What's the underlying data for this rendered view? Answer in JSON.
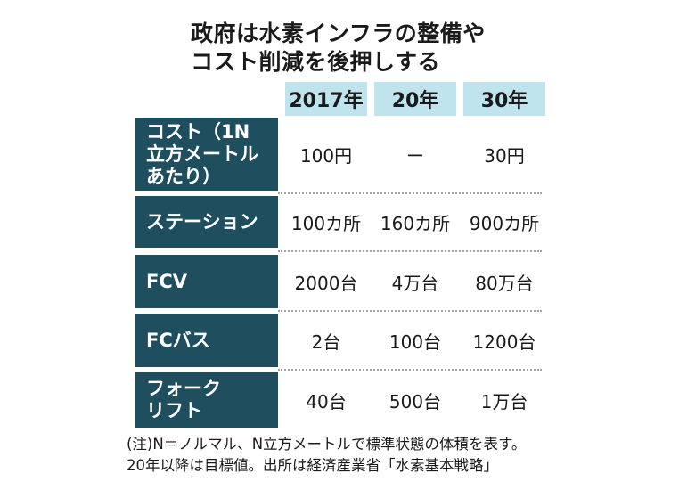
{
  "title": {
    "line1": "政府は水素インフラの整備や",
    "line2": "コスト削減を後押しする"
  },
  "columns": [
    "2017年",
    "20年",
    "30年"
  ],
  "rows": [
    {
      "label": "コスト（1N\n立方メートル\nあたり）",
      "values": [
        "100円",
        "ー",
        "30円"
      ]
    },
    {
      "label": "ステーション",
      "values": [
        "100カ所",
        "160カ所",
        "900カ所"
      ]
    },
    {
      "label": "FCV",
      "values": [
        "2000台",
        "4万台",
        "80万台"
      ]
    },
    {
      "label": "FCバス",
      "values": [
        "2台",
        "100台",
        "1200台"
      ]
    },
    {
      "label": "フォーク\nリフト",
      "values": [
        "40台",
        "500台",
        "1万台"
      ]
    }
  ],
  "note": {
    "line1": "(注)N＝ノルマル、N立方メートルで標準状態の体積を表す。",
    "line2": "20年以降は目標値。出所は経済産業省「水素基本戦略」"
  },
  "colors": {
    "row_header_bg": "#1f4f5f",
    "column_header_bg": "#bfe4ee"
  }
}
